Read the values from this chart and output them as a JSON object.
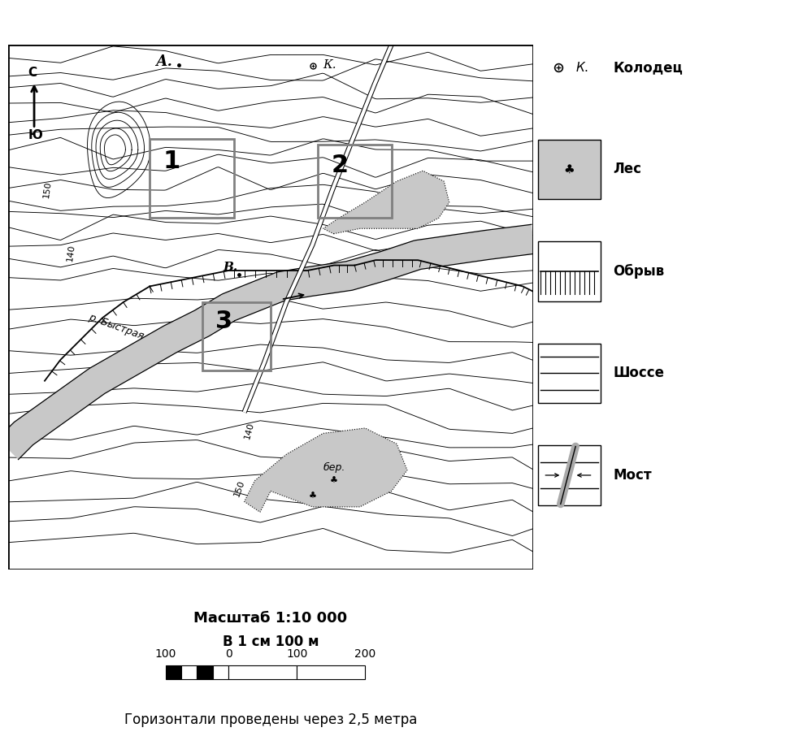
{
  "bg": "#ffffff",
  "cc": "#000000",
  "river_fill": "#c8c8c8",
  "forest_fill": "#c8c8c8",
  "forest_dot_fill": "#aaaaaa",
  "gray_box": "#888888",
  "scale_text1": "Масштаб 1:10 000",
  "scale_text2": "В 1 см 100 м",
  "scale_text3": "Горизонтали проведены через 2,5 метра",
  "north": "С",
  "south": "Ю",
  "lbl_A": "А.",
  "lbl_K": "К.",
  "lbl_B": "В.",
  "lbl_river": "р. Быстрая",
  "lbl_ber": "бер.",
  "elev_150": "150",
  "elev_140": "140",
  "leg_well_sym": "К.",
  "leg_well": "Колодец",
  "leg_forest": "Лес",
  "leg_cliff": "Обрыв",
  "leg_road": "Шоссе",
  "leg_bridge": "Мост",
  "box1": "1",
  "box2": "2",
  "box3": "3"
}
